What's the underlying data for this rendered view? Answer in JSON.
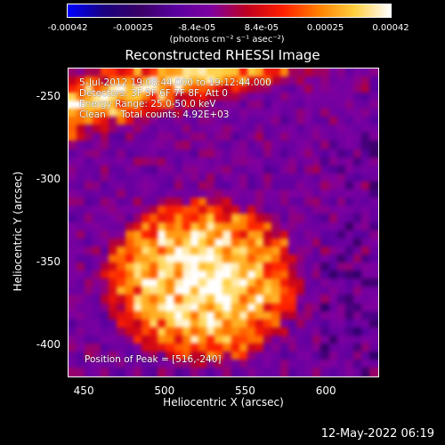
{
  "colorbar": {
    "ticks": [
      "-0.00042",
      "-0.00025",
      "-8.4e-05",
      "8.4e-05",
      "0.00025",
      "0.00042"
    ],
    "tick_values": [
      -0.00042,
      -0.00025,
      -8.4e-05,
      8.4e-05,
      0.00025,
      0.00042
    ],
    "unit_label": "(photons cm⁻² s⁻¹ asec⁻²)",
    "colormap": [
      "#0000ff",
      "#1a0080",
      "#3a0066",
      "#5a00a0",
      "#8000a0",
      "#c00020",
      "#ff2000",
      "#ff8000",
      "#ffd040",
      "#ffffff"
    ]
  },
  "chart_data": {
    "type": "heatmap",
    "title": "Reconstructed RHESSI Image",
    "xlabel": "Heliocentric X (arcsec)",
    "ylabel": "Heliocentric Y (arcsec)",
    "xlim": [
      440,
      633
    ],
    "ylim": [
      -420,
      -233
    ],
    "x_ticks": [
      450,
      500,
      550,
      600
    ],
    "y_ticks": [
      -250,
      -300,
      -350,
      -400
    ],
    "value_range": [
      -0.00042,
      0.00042
    ],
    "peak": [
      516,
      -240
    ]
  },
  "info": {
    "time_range": "5-Jul-2012 19:08:44.000 to 19:12:44.000",
    "detectors": "Detectors: 3F 5F 6F 7F 8F, Att 0",
    "energy": "Energy Range: 25.0-50.0 keV",
    "method": "Clean     Total counts: 4.92E+03",
    "peak_position": "Position of Peak = [516,-240]"
  },
  "timestamp": "12-May-2022 06:19"
}
